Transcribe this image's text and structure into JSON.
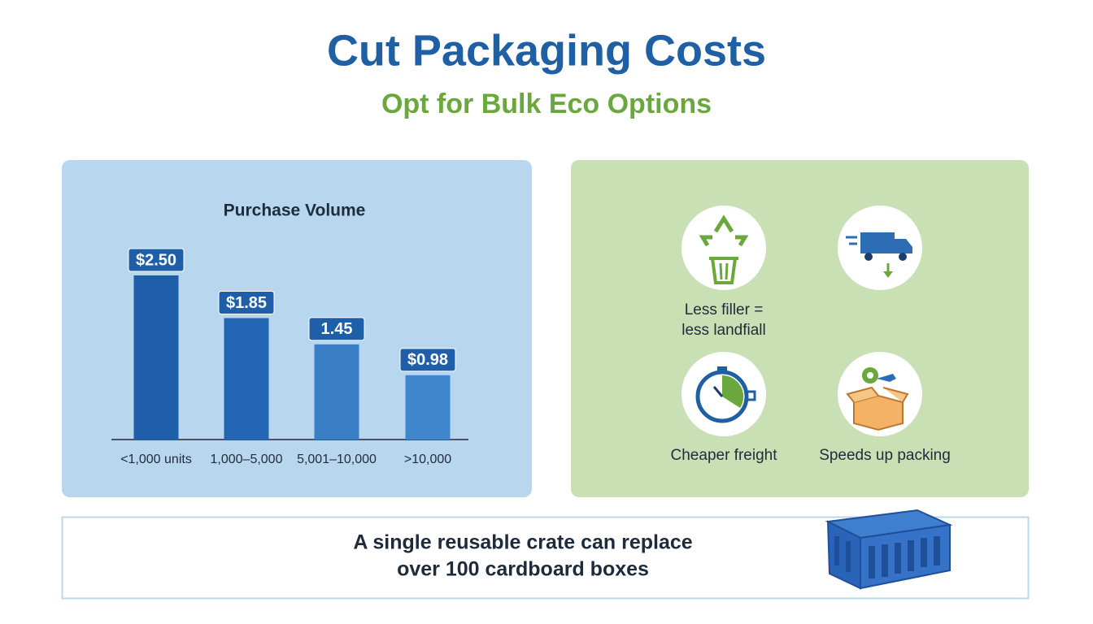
{
  "header": {
    "title": "Cut Packaging Costs",
    "subtitle": "Opt for Bulk Eco Options"
  },
  "chart_data": {
    "type": "bar",
    "title": "Purchase Volume",
    "categories": [
      "<1,000 units",
      "1,000–5,000",
      "5,001–10,000",
      ">10,000"
    ],
    "values": [
      2.5,
      1.85,
      1.45,
      0.98
    ],
    "value_labels": [
      "$2.50",
      "$1.85",
      "1.45",
      "$0.98"
    ],
    "colors": [
      "#1f5ea8",
      "#2466b3",
      "#3a7ec6",
      "#3f86cc"
    ]
  },
  "benefits": [
    {
      "lines": [
        "Less filler =",
        "less landfiall"
      ]
    },
    {
      "lines": [
        "Cheaper freight"
      ]
    },
    {
      "lines": [
        "Speeds up packing"
      ]
    }
  ],
  "footer": {
    "lines": [
      "A single reusable crate can replace",
      "over 100 cardboard boxes"
    ]
  }
}
